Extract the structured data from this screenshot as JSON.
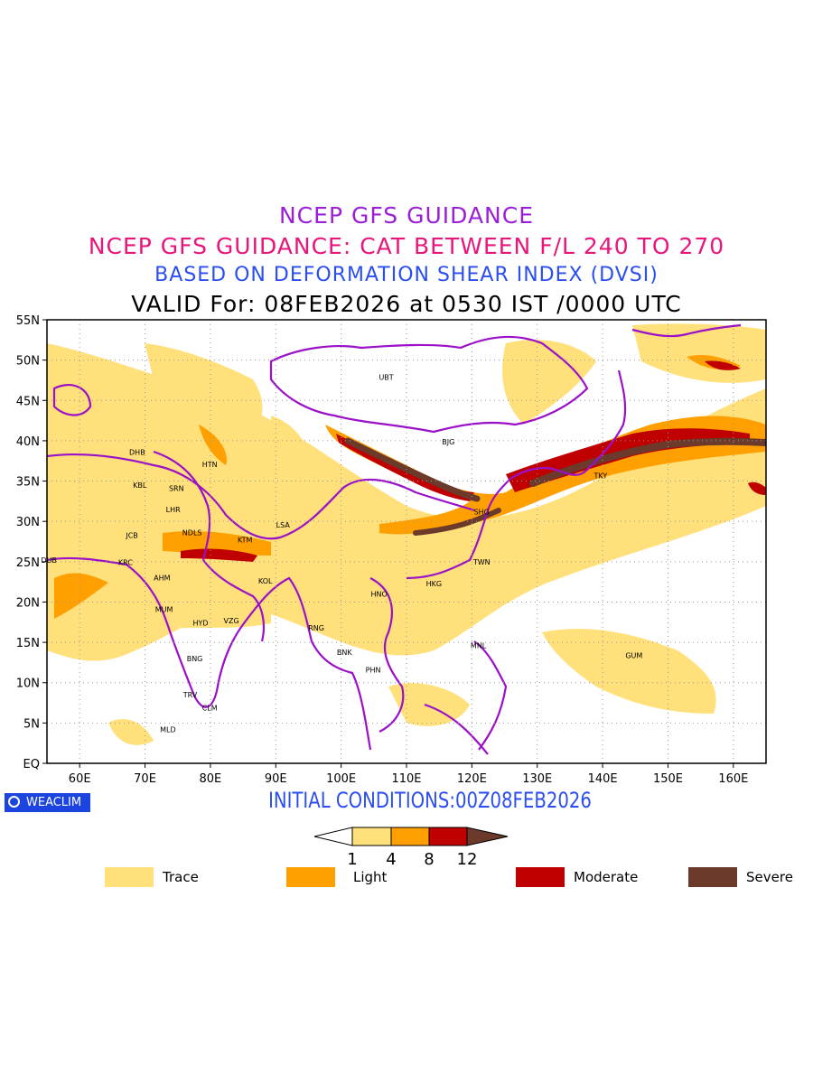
{
  "titles": {
    "line1": "NCEP GFS GUIDANCE",
    "line2": "NCEP GFS GUIDANCE: CAT BETWEEN F/L 240 TO 270",
    "line3": "BASED ON DEFORMATION SHEAR INDEX (DVSI)",
    "line4": "VALID For: 08FEB2026 at 0530 IST /0000 UTC"
  },
  "map": {
    "lon_range": [
      55,
      165
    ],
    "lat_range": [
      0,
      55
    ],
    "lon_ticks": [
      {
        "value": 60,
        "label": "60E"
      },
      {
        "value": 70,
        "label": "70E"
      },
      {
        "value": 80,
        "label": "80E"
      },
      {
        "value": 90,
        "label": "90E"
      },
      {
        "value": 100,
        "label": "100E"
      },
      {
        "value": 110,
        "label": "110E"
      },
      {
        "value": 120,
        "label": "120E"
      },
      {
        "value": 130,
        "label": "130E"
      },
      {
        "value": 140,
        "label": "140E"
      },
      {
        "value": 150,
        "label": "150E"
      },
      {
        "value": 160,
        "label": "160E"
      }
    ],
    "lat_ticks": [
      {
        "value": 55,
        "label": "55N"
      },
      {
        "value": 50,
        "label": "50N"
      },
      {
        "value": 45,
        "label": "45N"
      },
      {
        "value": 40,
        "label": "40N"
      },
      {
        "value": 35,
        "label": "35N"
      },
      {
        "value": 30,
        "label": "30N"
      },
      {
        "value": 25,
        "label": "25N"
      },
      {
        "value": 20,
        "label": "20N"
      },
      {
        "value": 15,
        "label": "15N"
      },
      {
        "value": 10,
        "label": "10N"
      },
      {
        "value": 5,
        "label": "5N"
      },
      {
        "value": 0,
        "label": "EQ"
      }
    ],
    "stations": [
      {
        "code": "UBT",
        "lon": 106.9,
        "lat": 47.9
      },
      {
        "code": "BJG",
        "lon": 116.4,
        "lat": 39.9
      },
      {
        "code": "DHB",
        "lon": 68.8,
        "lat": 38.6
      },
      {
        "code": "HTN",
        "lon": 79.9,
        "lat": 37.1
      },
      {
        "code": "KBL",
        "lon": 69.2,
        "lat": 34.5
      },
      {
        "code": "SRN",
        "lon": 74.8,
        "lat": 34.1
      },
      {
        "code": "LHR",
        "lon": 74.3,
        "lat": 31.5
      },
      {
        "code": "JCB",
        "lon": 68.0,
        "lat": 28.3
      },
      {
        "code": "NDLS",
        "lon": 77.2,
        "lat": 28.6
      },
      {
        "code": "KTM",
        "lon": 85.3,
        "lat": 27.7
      },
      {
        "code": "LSA",
        "lon": 91.1,
        "lat": 29.6
      },
      {
        "code": "SHG",
        "lon": 121.5,
        "lat": 31.2
      },
      {
        "code": "TKY",
        "lon": 139.7,
        "lat": 35.7
      },
      {
        "code": "DUB",
        "lon": 55.3,
        "lat": 25.2
      },
      {
        "code": "KRC",
        "lon": 67.0,
        "lat": 24.9
      },
      {
        "code": "AHM",
        "lon": 72.6,
        "lat": 23.0
      },
      {
        "code": "KOL",
        "lon": 88.4,
        "lat": 22.6
      },
      {
        "code": "TWN",
        "lon": 121.5,
        "lat": 25.0
      },
      {
        "code": "HKG",
        "lon": 114.2,
        "lat": 22.3
      },
      {
        "code": "HNO",
        "lon": 105.8,
        "lat": 21.0
      },
      {
        "code": "MUM",
        "lon": 72.9,
        "lat": 19.1
      },
      {
        "code": "HYD",
        "lon": 78.5,
        "lat": 17.4
      },
      {
        "code": "VZG",
        "lon": 83.2,
        "lat": 17.7
      },
      {
        "code": "RNG",
        "lon": 96.2,
        "lat": 16.8
      },
      {
        "code": "BNK",
        "lon": 100.5,
        "lat": 13.8
      },
      {
        "code": "MNL",
        "lon": 121.0,
        "lat": 14.6
      },
      {
        "code": "GUM",
        "lon": 144.8,
        "lat": 13.4
      },
      {
        "code": "PHN",
        "lon": 104.9,
        "lat": 11.6
      },
      {
        "code": "BNG",
        "lon": 77.6,
        "lat": 12.97
      },
      {
        "code": "TRV",
        "lon": 76.9,
        "lat": 8.5
      },
      {
        "code": "CLM",
        "lon": 79.9,
        "lat": 6.9
      },
      {
        "code": "MLD",
        "lon": 73.5,
        "lat": 4.2
      }
    ]
  },
  "badge": {
    "label": "WEACLIM"
  },
  "initial_conditions": "INITIAL CONDITIONS:00Z08FEB2026",
  "colorbar": {
    "thresholds": [
      "1",
      "4",
      "8",
      "12"
    ],
    "colors": [
      "#ffffff",
      "#ffe07a",
      "#ffa000",
      "#c00000",
      "#6b3a2a"
    ]
  },
  "legend": [
    {
      "label": "Trace",
      "color": "#ffe07a"
    },
    {
      "label": "Light",
      "color": "#ffa000"
    },
    {
      "label": "Moderate",
      "color": "#c00000"
    },
    {
      "label": "Severe",
      "color": "#6b3a2a"
    }
  ],
  "colors": {
    "border": "#9b10c9",
    "grid": "#999999",
    "trace": "#ffe07a",
    "light": "#ffa000",
    "moderate": "#c00000",
    "severe": "#6b3a2a"
  }
}
